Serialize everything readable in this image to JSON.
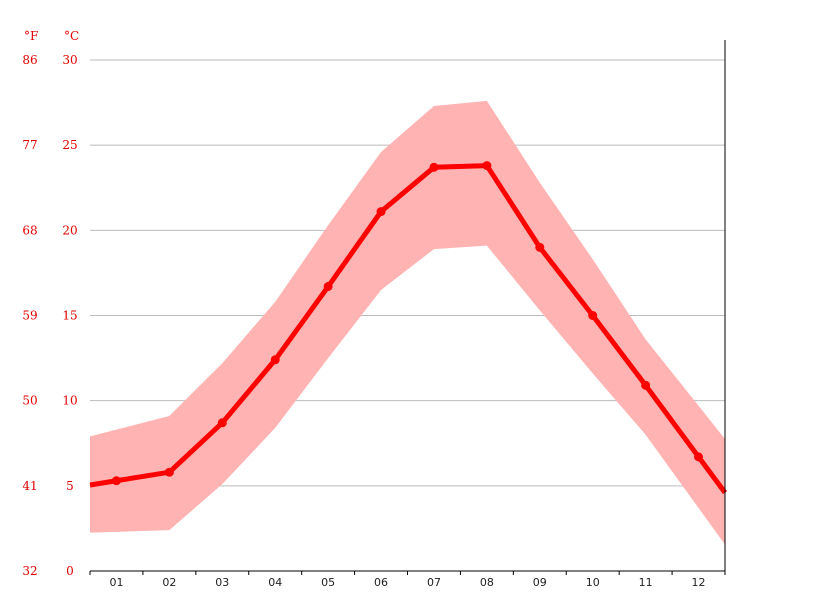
{
  "chart_data": {
    "type": "line",
    "unit_f": "°F",
    "unit_c": "°C",
    "categories": [
      "01",
      "02",
      "03",
      "04",
      "05",
      "06",
      "07",
      "08",
      "09",
      "10",
      "11",
      "12"
    ],
    "y_ticks_c": [
      "0",
      "5",
      "10",
      "15",
      "20",
      "25",
      "30"
    ],
    "y_ticks_f": [
      "32",
      "41",
      "50",
      "59",
      "68",
      "77",
      "86"
    ],
    "ylim": [
      0,
      30
    ],
    "grid": true,
    "series": [
      {
        "values": [
          5.3,
          5.8,
          8.7,
          12.4,
          16.7,
          21.1,
          23.7,
          23.8,
          19.0,
          15.0,
          10.9,
          6.7
        ]
      }
    ],
    "band": {
      "min": [
        2.3,
        2.4,
        5.1,
        8.4,
        12.5,
        16.5,
        18.9,
        19.1,
        15.3,
        11.6,
        8.0,
        3.7
      ],
      "max": [
        8.3,
        9.1,
        12.2,
        15.8,
        20.3,
        24.6,
        27.3,
        27.6,
        22.8,
        18.3,
        13.6,
        9.7
      ]
    },
    "colors": {
      "line": "#ff0000",
      "band": "#ffb3b3",
      "grid": "#bbbbbb",
      "axis": "#000000",
      "label": "#e00000"
    }
  }
}
